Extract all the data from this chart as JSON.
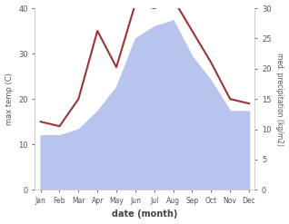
{
  "months": [
    "Jan",
    "Feb",
    "Mar",
    "Apr",
    "May",
    "Jun",
    "Jul",
    "Aug",
    "Sep",
    "Oct",
    "Nov",
    "Dec"
  ],
  "month_x": [
    0,
    1,
    2,
    3,
    4,
    5,
    6,
    7,
    8,
    9,
    10,
    11
  ],
  "temp": [
    15,
    14,
    20,
    35,
    27,
    41,
    40,
    42,
    35,
    28,
    20,
    19
  ],
  "precip_left_scale": [
    9,
    9,
    10,
    13,
    17,
    25,
    27,
    28,
    22,
    18,
    13,
    13
  ],
  "temp_color": "#9b3535",
  "precip_fill_color": "#b8c4ee",
  "ylim_left": [
    0,
    40
  ],
  "ylim_right": [
    0,
    30
  ],
  "yticks_left": [
    0,
    10,
    20,
    30,
    40
  ],
  "yticks_right": [
    0,
    5,
    10,
    15,
    20,
    25,
    30
  ],
  "ylabel_left": "max temp (C)",
  "ylabel_right": "med. precipitation (kg/m2)",
  "xlabel": "date (month)",
  "bg_color": "#ffffff"
}
